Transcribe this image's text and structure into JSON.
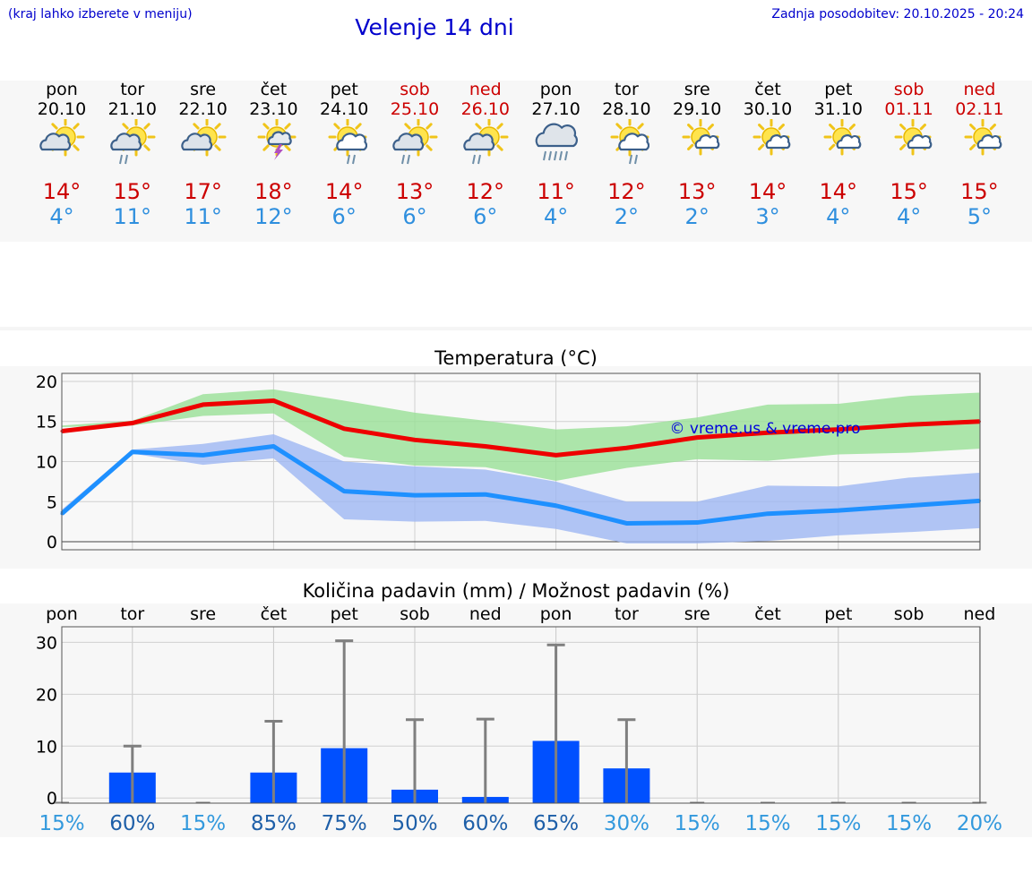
{
  "header": {
    "hint": "(kraj lahko izberete v meniju)",
    "title": "Velenje 14 dni",
    "updated": "Zadnja posodobitev: 20.10.2025 - 20:24"
  },
  "colors": {
    "weekday": "#000000",
    "weekend": "#cc0000",
    "max_temp": "#cc0000",
    "min_temp": "#2f8fde",
    "link": "#0000cc",
    "precip_bar": "#0050ff",
    "pct_high": "#1e5fa8",
    "pct_low": "#3399dd"
  },
  "days": [
    {
      "name": "pon",
      "date": "20.10",
      "max": "14°",
      "min": "4°",
      "weekend": false,
      "icon": "partly-cloudy-icon"
    },
    {
      "name": "tor",
      "date": "21.10",
      "max": "15°",
      "min": "11°",
      "weekend": false,
      "icon": "partly-cloudy-rain-icon"
    },
    {
      "name": "sre",
      "date": "22.10",
      "max": "17°",
      "min": "11°",
      "weekend": false,
      "icon": "partly-cloudy-icon"
    },
    {
      "name": "čet",
      "date": "23.10",
      "max": "18°",
      "min": "12°",
      "weekend": false,
      "icon": "thunderstorm-icon"
    },
    {
      "name": "pet",
      "date": "24.10",
      "max": "14°",
      "min": "6°",
      "weekend": false,
      "icon": "sun-cloud-rain-icon"
    },
    {
      "name": "sob",
      "date": "25.10",
      "max": "13°",
      "min": "6°",
      "weekend": true,
      "icon": "partly-cloudy-rain-icon"
    },
    {
      "name": "ned",
      "date": "26.10",
      "max": "12°",
      "min": "6°",
      "weekend": true,
      "icon": "partly-cloudy-rain-icon"
    },
    {
      "name": "pon",
      "date": "27.10",
      "max": "11°",
      "min": "4°",
      "weekend": false,
      "icon": "cloudy-heavy-rain-icon"
    },
    {
      "name": "tor",
      "date": "28.10",
      "max": "12°",
      "min": "2°",
      "weekend": false,
      "icon": "sun-cloud-rain-icon"
    },
    {
      "name": "sre",
      "date": "29.10",
      "max": "13°",
      "min": "2°",
      "weekend": false,
      "icon": "sun-small-cloud-icon"
    },
    {
      "name": "čet",
      "date": "30.10",
      "max": "14°",
      "min": "3°",
      "weekend": false,
      "icon": "sun-small-cloud-icon"
    },
    {
      "name": "pet",
      "date": "31.10",
      "max": "14°",
      "min": "4°",
      "weekend": false,
      "icon": "sun-small-cloud-icon"
    },
    {
      "name": "sob",
      "date": "01.11",
      "max": "15°",
      "min": "4°",
      "weekend": true,
      "icon": "sun-small-cloud-icon"
    },
    {
      "name": "ned",
      "date": "02.11",
      "max": "15°",
      "min": "5°",
      "weekend": true,
      "icon": "sun-small-cloud-icon"
    }
  ],
  "chart_data": [
    {
      "type": "line",
      "title": "Temperatura (°C)",
      "watermark": "© vreme.us & vreme.pro",
      "ylim": [
        -1,
        21
      ],
      "yticks": [
        0,
        5,
        10,
        15,
        20
      ],
      "grid": true,
      "x": [
        0,
        1,
        2,
        3,
        4,
        5,
        6,
        7,
        8,
        9,
        10,
        11,
        12,
        13
      ],
      "series": [
        {
          "name": "max",
          "values": [
            13.8,
            14.8,
            17.1,
            17.6,
            14.1,
            12.7,
            11.9,
            10.8,
            11.7,
            13.0,
            13.6,
            14.0,
            14.6,
            15.0
          ],
          "band_low": [
            14.3,
            14.5,
            15.7,
            16.0,
            10.6,
            9.5,
            9.3,
            7.6,
            9.2,
            10.3,
            10.1,
            10.9,
            11.1,
            11.6
          ],
          "band_high": [
            14.5,
            15.1,
            18.4,
            19.0,
            17.6,
            16.1,
            15.1,
            14.0,
            14.4,
            15.5,
            17.1,
            17.2,
            18.2,
            18.6
          ]
        },
        {
          "name": "min",
          "values": [
            3.5,
            11.2,
            10.8,
            11.9,
            6.3,
            5.8,
            5.9,
            4.5,
            2.3,
            2.4,
            3.5,
            3.9,
            4.5,
            5.1
          ],
          "band_low": [
            3.2,
            11.0,
            9.6,
            10.4,
            2.8,
            2.5,
            2.6,
            1.6,
            -0.2,
            -0.2,
            0.1,
            0.8,
            1.2,
            1.7
          ],
          "band_high": [
            4.0,
            11.5,
            12.2,
            13.4,
            10.0,
            9.4,
            9.0,
            7.5,
            5.0,
            5.0,
            7.0,
            6.9,
            8.0,
            8.6
          ]
        }
      ]
    },
    {
      "type": "bar",
      "title": "Količina padavin (mm) / Možnost padavin (%)",
      "ylim": [
        -1,
        33
      ],
      "yticks": [
        0,
        10,
        20,
        30
      ],
      "grid": true,
      "categories": [
        "pon",
        "tor",
        "sre",
        "čet",
        "pet",
        "sob",
        "ned",
        "pon",
        "tor",
        "sre",
        "čet",
        "pet",
        "sob",
        "ned"
      ],
      "values": [
        0,
        4.9,
        0,
        4.9,
        9.6,
        1.6,
        0.2,
        11.0,
        5.7,
        0,
        0,
        0,
        0,
        0
      ],
      "error_high": [
        0,
        10.0,
        0,
        14.8,
        30.3,
        15.1,
        15.2,
        29.5,
        15.1,
        0,
        0,
        0,
        0,
        0
      ],
      "probability": [
        "15%",
        "60%",
        "15%",
        "85%",
        "75%",
        "50%",
        "60%",
        "65%",
        "30%",
        "15%",
        "15%",
        "15%",
        "15%",
        "20%"
      ]
    }
  ]
}
